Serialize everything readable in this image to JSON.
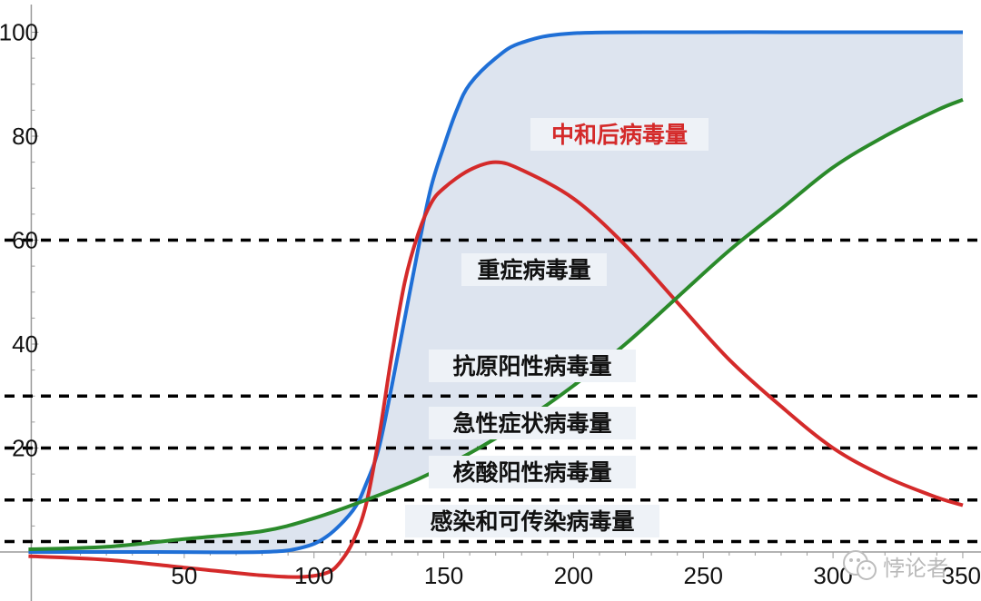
{
  "chart_data": {
    "type": "line",
    "xlim": [
      -10,
      350
    ],
    "ylim": [
      -5,
      104
    ],
    "x_ticks": [
      50,
      100,
      150,
      200,
      250,
      300,
      350
    ],
    "x_tick_labels": [
      "50",
      "100",
      "150",
      "200",
      "250",
      "300",
      "350"
    ],
    "y_ticks": [
      20,
      40,
      60,
      80,
      100
    ],
    "y_tick_labels": [
      "20",
      "40",
      "60",
      "80",
      "100"
    ],
    "grid": false,
    "legend": "none",
    "series": [
      {
        "color": "#1f6fd6",
        "points": [
          [
            -10,
            0
          ],
          [
            40,
            0
          ],
          [
            80,
            0
          ],
          [
            95,
            0.8
          ],
          [
            105,
            3
          ],
          [
            115,
            8
          ],
          [
            120,
            13
          ],
          [
            125,
            20
          ],
          [
            130,
            32
          ],
          [
            135,
            45
          ],
          [
            140,
            58
          ],
          [
            145,
            70
          ],
          [
            150,
            78
          ],
          [
            155,
            85
          ],
          [
            160,
            90
          ],
          [
            170,
            95
          ],
          [
            180,
            98
          ],
          [
            200,
            99.8
          ],
          [
            250,
            100
          ],
          [
            300,
            100
          ],
          [
            350,
            100
          ]
        ]
      },
      {
        "color": "#d42a2a",
        "points": [
          [
            -10,
            -0.8
          ],
          [
            20,
            -1.5
          ],
          [
            50,
            -3
          ],
          [
            80,
            -4.5
          ],
          [
            95,
            -4.8
          ],
          [
            105,
            -4
          ],
          [
            110,
            -2
          ],
          [
            115,
            2
          ],
          [
            120,
            9
          ],
          [
            125,
            22
          ],
          [
            130,
            38
          ],
          [
            135,
            52
          ],
          [
            140,
            61
          ],
          [
            145,
            67
          ],
          [
            150,
            70
          ],
          [
            160,
            73.5
          ],
          [
            170,
            75
          ],
          [
            180,
            73.5
          ],
          [
            200,
            68
          ],
          [
            220,
            59
          ],
          [
            240,
            48
          ],
          [
            260,
            37
          ],
          [
            280,
            28
          ],
          [
            300,
            20
          ],
          [
            320,
            14.5
          ],
          [
            340,
            10.5
          ],
          [
            350,
            9
          ]
        ]
      },
      {
        "color": "#2a8a2a",
        "points": [
          [
            -10,
            0.5
          ],
          [
            20,
            1
          ],
          [
            50,
            2.5
          ],
          [
            80,
            4
          ],
          [
            100,
            6.5
          ],
          [
            120,
            10
          ],
          [
            140,
            14
          ],
          [
            160,
            19
          ],
          [
            180,
            25
          ],
          [
            200,
            32
          ],
          [
            220,
            40
          ],
          [
            240,
            49
          ],
          [
            260,
            58
          ],
          [
            280,
            66
          ],
          [
            300,
            74
          ],
          [
            320,
            80
          ],
          [
            340,
            85
          ],
          [
            350,
            87
          ]
        ]
      }
    ],
    "shaded_region": {
      "between": [
        "blue",
        "green"
      ],
      "fill": "#dde4ef"
    },
    "thresholds": [
      {
        "y": 60,
        "label": "重症病毒量",
        "label_color": "#111111"
      },
      {
        "y": 30,
        "label": "抗原阳性病毒量",
        "label_color": "#111111"
      },
      {
        "y": 20,
        "label": "急性症状病毒量",
        "label_color": "#111111"
      },
      {
        "y": 10,
        "label": "核酸阳性病毒量",
        "label_color": "#111111"
      },
      {
        "y": 2,
        "label": "感染和可传染病毒量",
        "label_color": "#111111"
      }
    ],
    "annotations": [
      {
        "text": "中和后病毒量",
        "color": "#d42a2a"
      }
    ]
  },
  "watermark": {
    "icon": "wechat-icon",
    "text": "悖论者"
  }
}
